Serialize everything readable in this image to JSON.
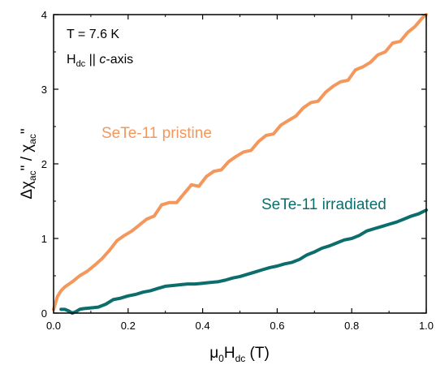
{
  "chart_data": {
    "type": "line",
    "xlabel": {
      "base": "μ",
      "base_sub": "0",
      "main": "H",
      "main_sub": "dc",
      "unit": " (T)"
    },
    "ylabel": {
      "delta": "Δχ",
      "sub1": "ac",
      "prime": "\"",
      "sep": " / χ",
      "sub2": "ac",
      "prime2": "\""
    },
    "annotation": {
      "line1": "T = 7.6 K",
      "line2_base": "H",
      "line2_sub": "dc",
      "line2_rest": " || ",
      "line2_italic": "c",
      "line2_end": "-axis"
    },
    "xlim": [
      0.0,
      1.0
    ],
    "ylim": [
      0,
      4
    ],
    "x_ticks": [
      "0.0",
      "0.2",
      "0.4",
      "0.6",
      "0.8",
      "1.0"
    ],
    "y_ticks": [
      "0",
      "1",
      "2",
      "3",
      "4"
    ],
    "grid": false,
    "colors": {
      "pristine": "#f4975c",
      "irradiated": "#0b6e6d",
      "axis": "#000000"
    },
    "series": [
      {
        "name": "SeTe-11 pristine",
        "x": [
          0.0,
          0.01,
          0.02,
          0.03,
          0.05,
          0.07,
          0.09,
          0.11,
          0.13,
          0.15,
          0.17,
          0.19,
          0.21,
          0.23,
          0.25,
          0.27,
          0.29,
          0.31,
          0.33,
          0.35,
          0.37,
          0.39,
          0.41,
          0.43,
          0.45,
          0.47,
          0.49,
          0.51,
          0.53,
          0.55,
          0.57,
          0.59,
          0.61,
          0.63,
          0.65,
          0.67,
          0.69,
          0.71,
          0.73,
          0.75,
          0.77,
          0.79,
          0.81,
          0.83,
          0.85,
          0.87,
          0.89,
          0.91,
          0.93,
          0.95,
          0.97,
          0.99,
          1.0
        ],
        "y": [
          0.05,
          0.22,
          0.3,
          0.35,
          0.42,
          0.5,
          0.56,
          0.64,
          0.73,
          0.84,
          0.97,
          1.04,
          1.1,
          1.18,
          1.26,
          1.3,
          1.45,
          1.48,
          1.48,
          1.6,
          1.72,
          1.7,
          1.83,
          1.9,
          1.92,
          2.03,
          2.1,
          2.16,
          2.18,
          2.3,
          2.38,
          2.4,
          2.52,
          2.58,
          2.64,
          2.75,
          2.82,
          2.84,
          2.96,
          3.04,
          3.1,
          3.12,
          3.26,
          3.3,
          3.36,
          3.46,
          3.5,
          3.62,
          3.64,
          3.76,
          3.84,
          3.96,
          4.0
        ]
      },
      {
        "name": "SeTe-11 irradiated",
        "x": [
          0.02,
          0.03,
          0.04,
          0.05,
          0.06,
          0.07,
          0.08,
          0.1,
          0.12,
          0.14,
          0.16,
          0.18,
          0.2,
          0.22,
          0.24,
          0.26,
          0.28,
          0.3,
          0.32,
          0.34,
          0.36,
          0.38,
          0.4,
          0.42,
          0.44,
          0.46,
          0.48,
          0.5,
          0.52,
          0.54,
          0.56,
          0.58,
          0.6,
          0.62,
          0.64,
          0.66,
          0.68,
          0.7,
          0.72,
          0.74,
          0.76,
          0.78,
          0.8,
          0.82,
          0.84,
          0.86,
          0.88,
          0.9,
          0.92,
          0.94,
          0.96,
          0.98,
          1.0
        ],
        "y": [
          0.05,
          0.05,
          0.03,
          0.0,
          0.02,
          0.05,
          0.06,
          0.07,
          0.08,
          0.12,
          0.18,
          0.2,
          0.23,
          0.25,
          0.28,
          0.3,
          0.33,
          0.36,
          0.37,
          0.38,
          0.39,
          0.39,
          0.4,
          0.41,
          0.42,
          0.44,
          0.47,
          0.49,
          0.52,
          0.55,
          0.58,
          0.61,
          0.63,
          0.66,
          0.68,
          0.72,
          0.78,
          0.82,
          0.87,
          0.9,
          0.94,
          0.98,
          1.0,
          1.04,
          1.1,
          1.13,
          1.16,
          1.19,
          1.22,
          1.26,
          1.3,
          1.33,
          1.38
        ]
      }
    ]
  }
}
